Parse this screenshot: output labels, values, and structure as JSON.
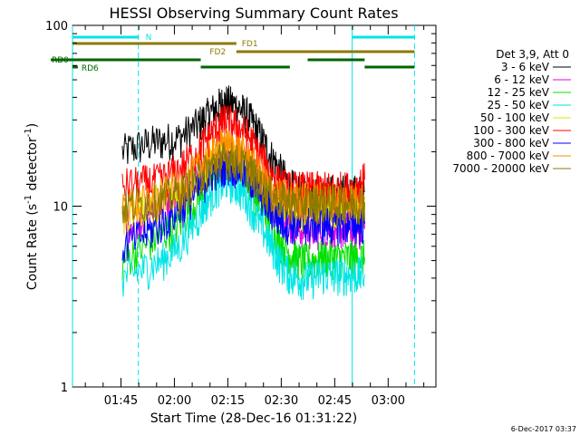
{
  "chart_data": {
    "type": "line",
    "title": "HESSI Observing Summary Count Rates",
    "xlabel": "Start Time (28-Dec-16 01:31:22)",
    "ylabel_main": "Count Rate (s",
    "ylabel_sup1": "-1",
    "ylabel_mid": " detector",
    "ylabel_sup2": "-1",
    "ylabel_end": ")",
    "yscale": "log",
    "ylim": [
      1,
      100
    ],
    "xlim_minutes": [
      0,
      102
    ],
    "x_tick_labels": [
      "01:45",
      "02:00",
      "02:15",
      "02:30",
      "02:45",
      "03:00"
    ],
    "x_tick_minutes": [
      13.6,
      28.6,
      43.6,
      58.6,
      73.6,
      88.6
    ],
    "y_tick_labels": [
      "1",
      "10",
      "100"
    ],
    "y_tick_values": [
      1,
      10,
      100
    ],
    "legend_title": "Det 3,9, Att 0",
    "timestamp": "6-Dec-2017 03:37",
    "flags": [
      {
        "name": "N",
        "color": "#00e5e5",
        "segments": [
          [
            0,
            18.5
          ],
          [
            78.5,
            96
          ]
        ]
      },
      {
        "name": "FD1",
        "color": "#8c7a00",
        "segments": [
          [
            0,
            46
          ]
        ]
      },
      {
        "name": "FD2",
        "color": "#8c7a00",
        "segments": [
          [
            46,
            96
          ]
        ]
      },
      {
        "name": "RD0",
        "color": "#006400",
        "segments": [
          [
            0,
            36
          ],
          [
            66,
            82
          ]
        ]
      },
      {
        "name": "RD6",
        "color": "#006400",
        "segments": [
          [
            0,
            1.5
          ],
          [
            36,
            61
          ],
          [
            82,
            96
          ]
        ]
      }
    ],
    "saa_lines": [
      {
        "minute": 0,
        "style": "solid"
      },
      {
        "minute": 18.5,
        "style": "dashed"
      },
      {
        "minute": 78.5,
        "style": "solid"
      },
      {
        "minute": 96,
        "style": "dashed"
      }
    ],
    "series": [
      {
        "name": "3 - 6 keV",
        "color": "#000000",
        "points": [
          [
            14,
            20
          ],
          [
            20,
            22
          ],
          [
            25,
            23
          ],
          [
            30,
            24
          ],
          [
            35,
            28
          ],
          [
            38,
            32
          ],
          [
            41,
            36
          ],
          [
            43,
            38
          ],
          [
            46,
            36
          ],
          [
            49,
            32
          ],
          [
            52,
            26
          ],
          [
            55,
            20
          ],
          [
            58,
            16
          ],
          [
            61,
            13
          ],
          [
            64,
            12
          ],
          [
            67,
            12
          ],
          [
            70,
            12
          ],
          [
            73,
            12
          ],
          [
            76,
            12
          ],
          [
            79,
            12
          ],
          [
            82,
            12
          ]
        ]
      },
      {
        "name": "6 - 12 keV",
        "color": "#e000e0",
        "points": [
          [
            14,
            8
          ],
          [
            20,
            9
          ],
          [
            25,
            10
          ],
          [
            30,
            11
          ],
          [
            35,
            14
          ],
          [
            38,
            16
          ],
          [
            41,
            18
          ],
          [
            43,
            19
          ],
          [
            46,
            18
          ],
          [
            49,
            16
          ],
          [
            52,
            13
          ],
          [
            55,
            11
          ],
          [
            58,
            9
          ],
          [
            61,
            8
          ],
          [
            64,
            7.5
          ],
          [
            67,
            7.5
          ],
          [
            70,
            7.5
          ],
          [
            73,
            7.5
          ],
          [
            76,
            7.5
          ],
          [
            79,
            7.5
          ],
          [
            82,
            7.5
          ]
        ]
      },
      {
        "name": "12 - 25 keV",
        "color": "#00e000",
        "points": [
          [
            14,
            5
          ],
          [
            20,
            6
          ],
          [
            25,
            7
          ],
          [
            30,
            8
          ],
          [
            35,
            11
          ],
          [
            38,
            14
          ],
          [
            41,
            17
          ],
          [
            43,
            18
          ],
          [
            46,
            17
          ],
          [
            49,
            14
          ],
          [
            52,
            11
          ],
          [
            55,
            8.5
          ],
          [
            58,
            6.5
          ],
          [
            61,
            5.5
          ],
          [
            64,
            5
          ],
          [
            67,
            5
          ],
          [
            70,
            5.2
          ],
          [
            73,
            5.2
          ],
          [
            76,
            5.2
          ],
          [
            79,
            5.2
          ],
          [
            82,
            5.2
          ]
        ]
      },
      {
        "name": "25 - 50 keV",
        "color": "#00e5e5",
        "points": [
          [
            14,
            4
          ],
          [
            20,
            4.5
          ],
          [
            25,
            5
          ],
          [
            30,
            6
          ],
          [
            35,
            8.5
          ],
          [
            38,
            11
          ],
          [
            41,
            13
          ],
          [
            43,
            14
          ],
          [
            46,
            13
          ],
          [
            49,
            11
          ],
          [
            52,
            8.5
          ],
          [
            55,
            6.5
          ],
          [
            58,
            5
          ],
          [
            61,
            4.2
          ],
          [
            64,
            4
          ],
          [
            67,
            4
          ],
          [
            70,
            4.2
          ],
          [
            73,
            4.2
          ],
          [
            76,
            4.2
          ],
          [
            79,
            4.2
          ],
          [
            82,
            4.2
          ]
        ]
      },
      {
        "name": "50 - 100 keV",
        "color": "#e5e500",
        "points": [
          [
            14,
            9
          ],
          [
            20,
            10
          ],
          [
            25,
            11
          ],
          [
            30,
            12
          ],
          [
            35,
            15
          ],
          [
            38,
            17
          ],
          [
            41,
            19
          ],
          [
            43,
            20
          ],
          [
            46,
            19
          ],
          [
            49,
            17
          ],
          [
            52,
            14
          ],
          [
            55,
            12
          ],
          [
            58,
            10
          ],
          [
            61,
            9.5
          ],
          [
            64,
            9.5
          ],
          [
            67,
            9.5
          ],
          [
            70,
            9.5
          ],
          [
            73,
            9.5
          ],
          [
            76,
            9.5
          ],
          [
            79,
            9.5
          ],
          [
            82,
            9.5
          ]
        ]
      },
      {
        "name": "100 - 300 keV",
        "color": "#ff0000",
        "points": [
          [
            14,
            13
          ],
          [
            20,
            13.5
          ],
          [
            25,
            14
          ],
          [
            30,
            16
          ],
          [
            35,
            20
          ],
          [
            38,
            24
          ],
          [
            41,
            28
          ],
          [
            43,
            30
          ],
          [
            46,
            28
          ],
          [
            49,
            25
          ],
          [
            52,
            20
          ],
          [
            55,
            16
          ],
          [
            58,
            13.5
          ],
          [
            61,
            12.5
          ],
          [
            64,
            12.5
          ],
          [
            67,
            12.5
          ],
          [
            70,
            12.5
          ],
          [
            73,
            12.5
          ],
          [
            76,
            12.5
          ],
          [
            79,
            12.5
          ],
          [
            82,
            14
          ]
        ]
      },
      {
        "name": "300 - 800 keV",
        "color": "#0000ff",
        "points": [
          [
            14,
            6
          ],
          [
            20,
            7
          ],
          [
            25,
            8
          ],
          [
            30,
            9.5
          ],
          [
            35,
            12
          ],
          [
            38,
            14.5
          ],
          [
            41,
            16.5
          ],
          [
            43,
            17
          ],
          [
            46,
            16.5
          ],
          [
            49,
            15
          ],
          [
            52,
            12.5
          ],
          [
            55,
            10
          ],
          [
            58,
            8.5
          ],
          [
            61,
            8
          ],
          [
            64,
            8
          ],
          [
            67,
            8
          ],
          [
            70,
            8
          ],
          [
            73,
            8
          ],
          [
            76,
            8
          ],
          [
            79,
            8
          ],
          [
            82,
            8
          ]
        ]
      },
      {
        "name": "800 - 7000 keV",
        "color": "#ff8c00",
        "points": [
          [
            14,
            10
          ],
          [
            20,
            10.5
          ],
          [
            25,
            11.5
          ],
          [
            30,
            13
          ],
          [
            35,
            16
          ],
          [
            38,
            18.5
          ],
          [
            41,
            21
          ],
          [
            43,
            22
          ],
          [
            46,
            21
          ],
          [
            49,
            19
          ],
          [
            52,
            16
          ],
          [
            55,
            13
          ],
          [
            58,
            11.5
          ],
          [
            61,
            11
          ],
          [
            64,
            11
          ],
          [
            67,
            11
          ],
          [
            70,
            11
          ],
          [
            73,
            11
          ],
          [
            76,
            11
          ],
          [
            79,
            11
          ],
          [
            82,
            11
          ]
        ]
      },
      {
        "name": "7000 - 20000 keV",
        "color": "#8c7a00",
        "points": [
          [
            14,
            10
          ],
          [
            20,
            10.5
          ],
          [
            25,
            11
          ],
          [
            30,
            12
          ],
          [
            35,
            14
          ],
          [
            38,
            16
          ],
          [
            41,
            18
          ],
          [
            43,
            18.5
          ],
          [
            46,
            18
          ],
          [
            49,
            16.5
          ],
          [
            52,
            14
          ],
          [
            55,
            12
          ],
          [
            58,
            11
          ],
          [
            61,
            10.5
          ],
          [
            64,
            10.5
          ],
          [
            67,
            10.5
          ],
          [
            70,
            10.5
          ],
          [
            73,
            10.5
          ],
          [
            76,
            10.5
          ],
          [
            79,
            10.5
          ],
          [
            82,
            10.5
          ]
        ]
      }
    ]
  }
}
